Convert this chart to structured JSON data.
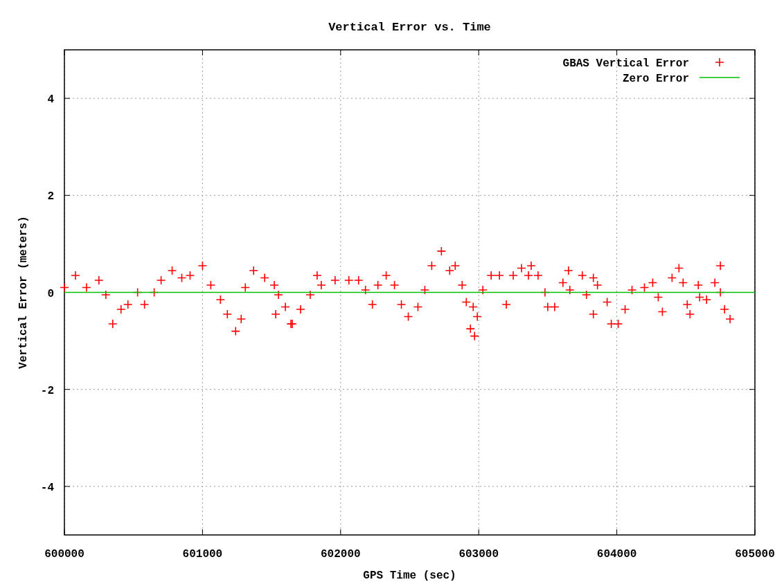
{
  "chart_data": {
    "type": "scatter",
    "title": "Vertical Error vs. Time",
    "xlabel": "GPS Time (sec)",
    "ylabel": "Vertical Error (meters)",
    "xlim": [
      600000,
      605000
    ],
    "xticks": [
      600000,
      601000,
      602000,
      603000,
      604000,
      605000
    ],
    "ylim": [
      -5,
      5
    ],
    "yticks": [
      -4,
      -2,
      0,
      2,
      4
    ],
    "grid": true,
    "legend": "top right",
    "series": [
      {
        "name": "GBAS Vertical Error",
        "color": "#ff0000",
        "marker": "cross",
        "x": [
          600000,
          600080,
          600160,
          600250,
          600300,
          600350,
          600410,
          600460,
          600530,
          600580,
          600650,
          600700,
          600780,
          600850,
          600910,
          601000,
          601060,
          601130,
          601180,
          601240,
          601280,
          601310,
          601370,
          601450,
          601520,
          601550,
          601600,
          601530,
          601650,
          601640,
          601710,
          601780,
          601860,
          601830,
          601960,
          602060,
          602130,
          602180,
          602230,
          602270,
          602330,
          602390,
          602440,
          602490,
          602560,
          602610,
          602660,
          602730,
          602790,
          602830,
          602880,
          602910,
          602960,
          602940,
          602990,
          602970,
          603030,
          603090,
          603150,
          603200,
          603250,
          603310,
          603360,
          603380,
          603430,
          603480,
          603550,
          603610,
          603660,
          603650,
          603750,
          603830,
          603780,
          603860,
          603930,
          603960,
          604010,
          604060,
          604110,
          604200,
          604260,
          604300,
          604330,
          604400,
          604450,
          604480,
          604510,
          604530,
          604600,
          604650,
          604710,
          604750,
          604780,
          604820,
          604750,
          604590,
          603830,
          603500
        ],
        "values": [
          0.1,
          0.35,
          0.1,
          0.25,
          -0.05,
          -0.65,
          -0.35,
          -0.25,
          0,
          -0.25,
          0,
          0.25,
          0.45,
          0.3,
          0.35,
          0.55,
          0.15,
          -0.15,
          -0.45,
          -0.8,
          -0.55,
          0.1,
          0.45,
          0.3,
          0.15,
          -0.05,
          -0.3,
          -0.45,
          -0.65,
          -0.65,
          -0.35,
          -0.05,
          0.15,
          0.35,
          0.25,
          0.25,
          0.25,
          0.05,
          -0.25,
          0.15,
          0.35,
          0.15,
          -0.25,
          -0.5,
          -0.3,
          0.05,
          0.55,
          0.85,
          0.45,
          0.55,
          0.15,
          -0.2,
          -0.3,
          -0.75,
          -0.5,
          -0.9,
          0.05,
          0.35,
          0.35,
          -0.25,
          0.35,
          0.5,
          0.35,
          0.55,
          0.35,
          0,
          -0.3,
          0.2,
          0.05,
          0.45,
          0.35,
          0.3,
          -0.05,
          0.15,
          -0.2,
          -0.65,
          -0.65,
          -0.35,
          0.05,
          0.1,
          0.2,
          -0.1,
          -0.4,
          0.3,
          0.5,
          0.2,
          -0.25,
          -0.45,
          -0.1,
          -0.15,
          0.2,
          0,
          -0.35,
          -0.55,
          0.55,
          0.15,
          -0.45,
          -0.3
        ]
      },
      {
        "name": "Zero Error",
        "color": "#00c000",
        "type": "line",
        "marker": "none",
        "x": [
          600000,
          605000
        ],
        "values": [
          0,
          0
        ]
      }
    ]
  }
}
